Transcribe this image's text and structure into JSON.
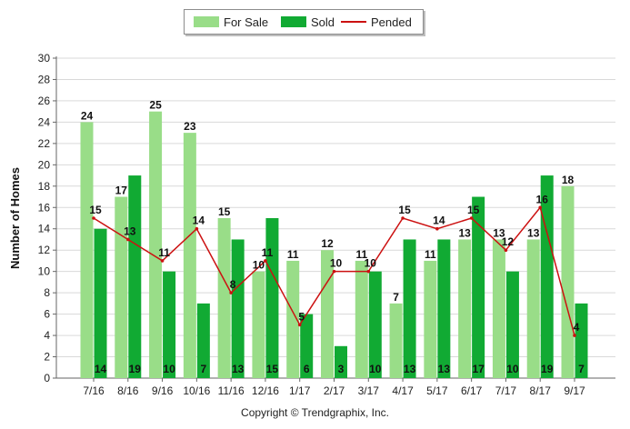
{
  "chart_data": {
    "type": "bar",
    "categories": [
      "7/16",
      "8/16",
      "9/16",
      "10/16",
      "11/16",
      "12/16",
      "1/17",
      "2/17",
      "3/17",
      "4/17",
      "5/17",
      "6/17",
      "7/17",
      "8/17",
      "9/17"
    ],
    "series": [
      {
        "name": "For Sale",
        "type": "bar",
        "color": "#99dd88",
        "values": [
          24,
          17,
          25,
          23,
          15,
          10,
          11,
          12,
          11,
          7,
          11,
          13,
          13,
          13,
          18
        ]
      },
      {
        "name": "Sold",
        "type": "bar",
        "color": "#11aa33",
        "values": [
          14,
          19,
          10,
          7,
          13,
          15,
          6,
          3,
          10,
          13,
          13,
          17,
          10,
          19,
          7
        ]
      },
      {
        "name": "Pended",
        "type": "line",
        "color": "#cc1111",
        "values": [
          15,
          13,
          11,
          14,
          8,
          11,
          5,
          10,
          10,
          15,
          14,
          15,
          12,
          16,
          4
        ]
      }
    ],
    "ylabel": "Number of Homes",
    "xlabel": "",
    "ylim": [
      0,
      30
    ],
    "yticks": [
      0,
      2,
      4,
      6,
      8,
      10,
      12,
      14,
      16,
      18,
      20,
      22,
      24,
      26,
      28,
      30
    ],
    "grid": true,
    "legend_position": "top-center"
  },
  "copyright": "Copyright © Trendgraphix, Inc."
}
